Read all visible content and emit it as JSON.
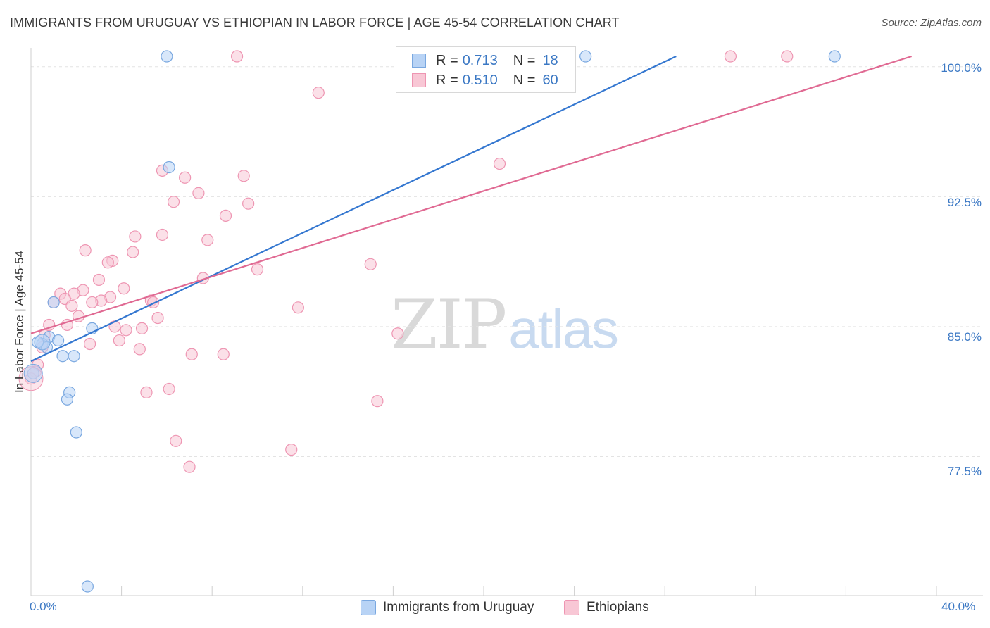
{
  "title": "IMMIGRANTS FROM URUGUAY VS ETHIOPIAN IN LABOR FORCE | AGE 45-54 CORRELATION CHART",
  "source": "Source: ZipAtlas.com",
  "watermark": {
    "zip": "ZIP",
    "atlas": "atlas"
  },
  "legend": {
    "r_label": "R =",
    "n_label": "N =",
    "series": [
      {
        "name": "Immigrants from Uruguay",
        "r": "0.713",
        "n": "18"
      },
      {
        "name": "Ethiopians",
        "r": "0.510",
        "n": "60"
      }
    ]
  },
  "colors": {
    "uruguay_fill": "#b8d3f5",
    "uruguay_stroke": "#7aa8e0",
    "uruguay_line": "#3477d0",
    "ethiopian_fill": "#f8c7d5",
    "ethiopian_stroke": "#ee95b2",
    "ethiopian_line": "#e06a93",
    "tick": "#3b78c4",
    "grid": "#e3e3e3"
  },
  "chart_data": {
    "type": "scatter",
    "title": "IMMIGRANTS FROM URUGUAY VS ETHIOPIAN IN LABOR FORCE | AGE 45-54 CORRELATION CHART",
    "xlabel": "",
    "ylabel": "In Labor Force | Age 45-54",
    "xlim": [
      0,
      40
    ],
    "ylim": [
      70.0,
      100.6
    ],
    "x_tick_labels": [
      {
        "value": 0,
        "label": "0.0%"
      },
      {
        "value": 40,
        "label": "40.0%"
      }
    ],
    "y_ticks": [
      {
        "value": 100.0,
        "label": "100.0%"
      },
      {
        "value": 92.5,
        "label": "92.5%"
      },
      {
        "value": 85.0,
        "label": "85.0%"
      },
      {
        "value": 77.5,
        "label": "77.5%"
      }
    ],
    "grid": true,
    "series": [
      {
        "name": "Immigrants from Uruguay",
        "color": "#7aa8e0",
        "trend": {
          "x0": 0,
          "y0": 83.0,
          "x1": 28.5,
          "y1": 100.6
        },
        "points": [
          {
            "x": 6.0,
            "y": 100.6
          },
          {
            "x": 24.5,
            "y": 100.6
          },
          {
            "x": 35.5,
            "y": 100.6
          },
          {
            "x": 6.1,
            "y": 94.2
          },
          {
            "x": 1.0,
            "y": 86.4
          },
          {
            "x": 2.7,
            "y": 84.9
          },
          {
            "x": 0.8,
            "y": 84.4
          },
          {
            "x": 1.2,
            "y": 84.2
          },
          {
            "x": 0.5,
            "y": 84.0
          },
          {
            "x": 0.7,
            "y": 83.8
          },
          {
            "x": 1.4,
            "y": 83.3
          },
          {
            "x": 1.9,
            "y": 83.3
          },
          {
            "x": 0.1,
            "y": 82.3
          },
          {
            "x": 1.7,
            "y": 81.2
          },
          {
            "x": 1.6,
            "y": 80.8
          },
          {
            "x": 2.0,
            "y": 78.9
          },
          {
            "x": 2.5,
            "y": 70.0
          },
          {
            "x": 0.3,
            "y": 84.1
          }
        ]
      },
      {
        "name": "Ethiopians",
        "color": "#ee95b2",
        "trend": {
          "x0": 0,
          "y0": 84.6,
          "x1": 38.9,
          "y1": 100.6
        },
        "points": [
          {
            "x": 9.1,
            "y": 100.6
          },
          {
            "x": 30.9,
            "y": 100.6
          },
          {
            "x": 33.4,
            "y": 100.6
          },
          {
            "x": 12.7,
            "y": 98.5
          },
          {
            "x": 20.7,
            "y": 94.4
          },
          {
            "x": 5.8,
            "y": 94.0
          },
          {
            "x": 9.4,
            "y": 93.7
          },
          {
            "x": 6.8,
            "y": 93.6
          },
          {
            "x": 7.4,
            "y": 92.7
          },
          {
            "x": 6.3,
            "y": 92.2
          },
          {
            "x": 9.6,
            "y": 92.1
          },
          {
            "x": 8.6,
            "y": 91.4
          },
          {
            "x": 4.6,
            "y": 90.2
          },
          {
            "x": 5.8,
            "y": 90.3
          },
          {
            "x": 7.8,
            "y": 90.0
          },
          {
            "x": 2.4,
            "y": 89.4
          },
          {
            "x": 4.5,
            "y": 89.3
          },
          {
            "x": 3.6,
            "y": 88.8
          },
          {
            "x": 3.4,
            "y": 88.7
          },
          {
            "x": 15.0,
            "y": 88.6
          },
          {
            "x": 10.0,
            "y": 88.3
          },
          {
            "x": 7.6,
            "y": 87.8
          },
          {
            "x": 3.0,
            "y": 87.7
          },
          {
            "x": 4.1,
            "y": 87.2
          },
          {
            "x": 2.3,
            "y": 87.1
          },
          {
            "x": 1.9,
            "y": 86.9
          },
          {
            "x": 1.3,
            "y": 86.9
          },
          {
            "x": 1.5,
            "y": 86.6
          },
          {
            "x": 3.5,
            "y": 86.7
          },
          {
            "x": 3.1,
            "y": 86.5
          },
          {
            "x": 5.3,
            "y": 86.5
          },
          {
            "x": 1.0,
            "y": 86.4
          },
          {
            "x": 1.8,
            "y": 86.2
          },
          {
            "x": 2.7,
            "y": 86.4
          },
          {
            "x": 5.4,
            "y": 86.4
          },
          {
            "x": 11.8,
            "y": 86.1
          },
          {
            "x": 2.1,
            "y": 85.6
          },
          {
            "x": 5.6,
            "y": 85.5
          },
          {
            "x": 1.6,
            "y": 85.1
          },
          {
            "x": 0.8,
            "y": 85.1
          },
          {
            "x": 3.7,
            "y": 85.0
          },
          {
            "x": 4.2,
            "y": 84.8
          },
          {
            "x": 4.9,
            "y": 84.9
          },
          {
            "x": 16.2,
            "y": 84.6
          },
          {
            "x": 0.6,
            "y": 84.5
          },
          {
            "x": 2.6,
            "y": 84.0
          },
          {
            "x": 3.9,
            "y": 84.2
          },
          {
            "x": 4.8,
            "y": 83.7
          },
          {
            "x": 0.5,
            "y": 83.8
          },
          {
            "x": 7.1,
            "y": 83.4
          },
          {
            "x": 8.5,
            "y": 83.4
          },
          {
            "x": 0.3,
            "y": 82.8
          },
          {
            "x": 0.2,
            "y": 82.4
          },
          {
            "x": 0.0,
            "y": 82.0
          },
          {
            "x": 6.1,
            "y": 81.4
          },
          {
            "x": 5.1,
            "y": 81.2
          },
          {
            "x": 15.3,
            "y": 80.7
          },
          {
            "x": 6.4,
            "y": 78.4
          },
          {
            "x": 11.5,
            "y": 77.9
          },
          {
            "x": 7.0,
            "y": 76.9
          }
        ]
      }
    ]
  }
}
